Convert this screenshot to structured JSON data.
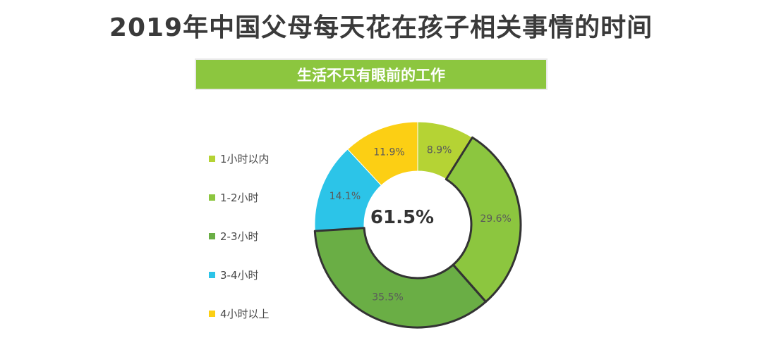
{
  "title": "2019年中国父母每天花在孩子相关事情的时间",
  "subtitle": "生活不只有眼前的工作",
  "chart_data": {
    "type": "pie",
    "variant": "donut",
    "center_text": "61.5%",
    "categories": [
      "1小时以内",
      "1-2小时",
      "2-3小时",
      "3-4小时",
      "4小时以上"
    ],
    "values": [
      8.9,
      29.6,
      35.5,
      14.1,
      11.9
    ],
    "value_labels": [
      "8.9%",
      "29.6%",
      "35.5%",
      "14.1%",
      "11.9%"
    ],
    "colors": [
      "#b5d334",
      "#8cc63f",
      "#6aae45",
      "#2cc4e8",
      "#fccf14"
    ],
    "highlighted": [
      "1-2小时",
      "2-3小时"
    ],
    "legend_position": "left"
  }
}
